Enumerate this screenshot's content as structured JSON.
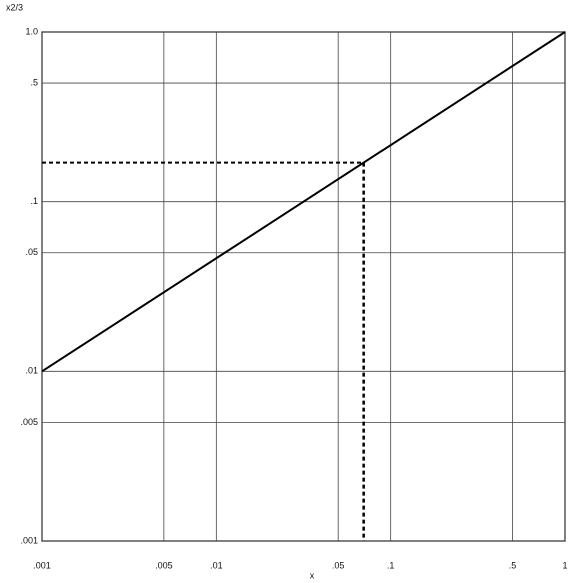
{
  "chart_data": {
    "type": "line",
    "x_label": "x",
    "y_label": "x2/3",
    "log_x": true,
    "log_y": true,
    "grid": true,
    "xlim": [
      0.001,
      1
    ],
    "ylim": [
      0.001,
      1
    ],
    "xticks": [
      {
        "value": 0.001,
        "label": ".001"
      },
      {
        "value": 0.005,
        "label": ".005"
      },
      {
        "value": 0.01,
        "label": ".01"
      },
      {
        "value": 0.05,
        "label": ".05"
      },
      {
        "value": 0.1,
        "label": ".1"
      },
      {
        "value": 0.5,
        "label": ".5"
      },
      {
        "value": 1,
        "label": "1"
      }
    ],
    "yticks": [
      {
        "value": 0.001,
        "label": ".001"
      },
      {
        "value": 0.005,
        "label": ".005"
      },
      {
        "value": 0.01,
        "label": ".01"
      },
      {
        "value": 0.05,
        "label": ".05"
      },
      {
        "value": 0.1,
        "label": ".1"
      },
      {
        "value": 0.5,
        "label": ".5"
      },
      {
        "value": 1,
        "label": "1.0"
      }
    ],
    "series": [
      {
        "color": "#000000",
        "x": [
          0.001,
          1
        ],
        "values": [
          0.01,
          1
        ]
      }
    ],
    "reference": {
      "x": 0.07,
      "y": 0.17
    }
  }
}
